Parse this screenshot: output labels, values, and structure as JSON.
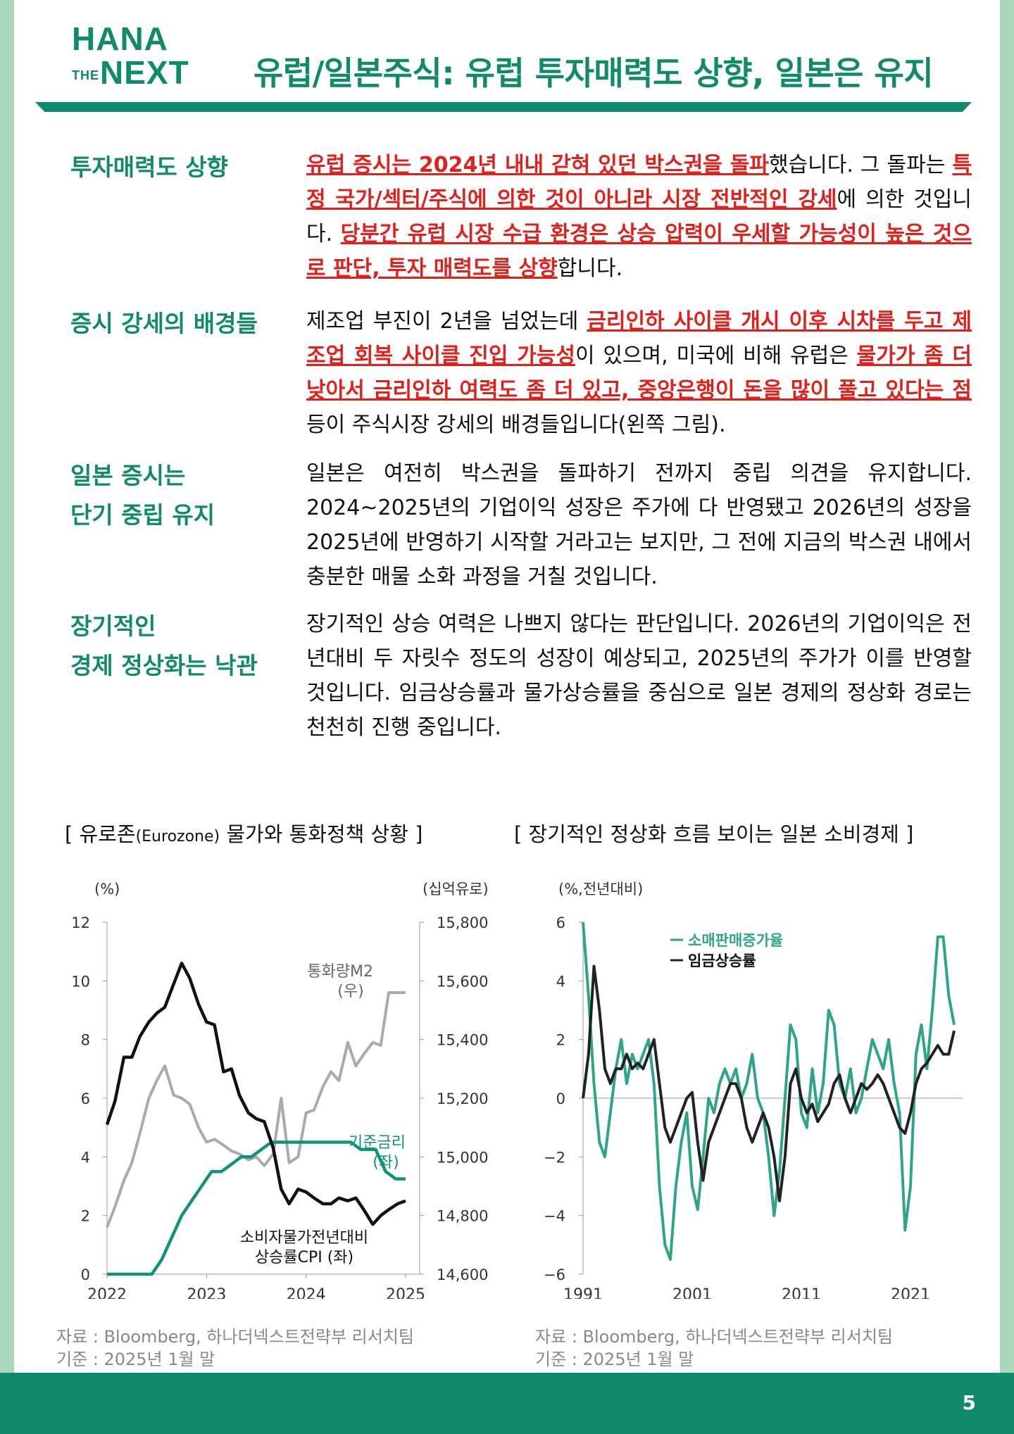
{
  "header": {
    "logo_line1": "HANA",
    "logo_the": "THE",
    "logo_next": "NEXT",
    "title": "유럽/일본주식: 유럽 투자매력도 상향, 일본은 유지"
  },
  "sections": [
    {
      "title": "투자매력도 상향",
      "body": [
        {
          "t": "유럽 증시는 2024년 내내 갇혀 있던 박스권을 돌파",
          "hl": true
        },
        {
          "t": "했습니다. 그 돌파는 ",
          "hl": false
        },
        {
          "t": "특정 국가/섹터/주식에 의한 것이 아니라 시장 전반적인 강세",
          "hl": true
        },
        {
          "t": "에 의한 것입니다. ",
          "hl": false
        },
        {
          "t": "당분간 유럽 시장 수급 환경은 상승 압력이 우세할 가능성이 높은 것으로 판단, 투자 매력도를 상향",
          "hl": true
        },
        {
          "t": "합니다.",
          "hl": false
        }
      ]
    },
    {
      "title": "증시 강세의 배경들",
      "body": [
        {
          "t": "제조업 부진이 2년을 넘었는데 ",
          "hl": false
        },
        {
          "t": "금리인하 사이클 개시 이후 시차를 두고 제조업 회복 사이클 진입 가능성",
          "hl": true
        },
        {
          "t": "이 있으며, 미국에 비해 유럽은 ",
          "hl": false
        },
        {
          "t": "물가가 좀 더 낮아서 금리인하 여력도 좀 더 있고, 중앙은행이 돈을 많이 풀고 있다는 점",
          "hl": true
        },
        {
          "t": " 등이 주식시장 강세의 배경들입니다(왼쪽 그림).",
          "hl": false
        }
      ]
    },
    {
      "title_line1": "일본 증시는",
      "title_line2": "단기 중립 유지",
      "body_text": "일본은 여전히 박스권을 돌파하기 전까지 중립 의견을 유지합니다. 2024~2025년의 기업이익 성장은 주가에 다 반영됐고 2026년의 성장을 2025년에 반영하기 시작할 거라고는 보지만, 그 전에 지금의 박스권 내에서 충분한 매물 소화 과정을 거칠 것입니다."
    },
    {
      "title_line1": "장기적인",
      "title_line2": "경제 정상화는 낙관",
      "body_text": "장기적인 상승 여력은 나쁘지 않다는 판단입니다. 2026년의 기업이익은 전년대비 두 자릿수 정도의 성장이 예상되고, 2025년의 주가가 이를 반영할 것입니다. 임금상승률과 물가상승률을 중심으로 일본 경제의 정상화 경로는 천천히 진행 중입니다."
    }
  ],
  "chart_left": {
    "title_pre": "[ 유로존",
    "title_small": "(Eurozone)",
    "title_post": " 물가와 통화정책 상황 ]",
    "left_unit": "(%)",
    "right_unit": "(십억유로)",
    "left_ticks": [
      "0",
      "2",
      "4",
      "6",
      "8",
      "10",
      "12"
    ],
    "right_ticks": [
      "14,600",
      "14,800",
      "15,000",
      "15,200",
      "15,400",
      "15,600",
      "15,800"
    ],
    "x_ticks": [
      "2022",
      "2023",
      "2024",
      "2025"
    ],
    "label_m2_1": "통화량M2",
    "label_m2_2": "(우)",
    "label_rate_1": "기준금리",
    "label_rate_2": "(좌)",
    "label_cpi_1": "소비자물가전년대비",
    "label_cpi_2": "상승률CPI (좌)",
    "source": "자료 : Bloomberg, 하나더넥스트전략부 리서치팀",
    "basis": "기준 : 2025년 1월 말"
  },
  "chart_right": {
    "title": "[ 장기적인 정상화 흐름 보이는 일본 소비경제 ]",
    "unit": "(%,전년대비)",
    "y_ticks": [
      "−6",
      "−4",
      "−2",
      "0",
      "2",
      "4",
      "6"
    ],
    "x_ticks": [
      "1991",
      "2001",
      "2011",
      "2021"
    ],
    "legend_retail": "소매판매증가율",
    "legend_wage": "임금상승률",
    "source": "자료 : Bloomberg, 하나더넥스트전략부 리서치팀",
    "basis": "기준 : 2025년 1월 말"
  },
  "colors": {
    "brand": "#0f8a6a",
    "highlight": "#e0201b",
    "m2": "#aaaaaa",
    "rate": "#11937a",
    "cpi": "#111111",
    "retail": "#2ea58a",
    "wage": "#222222"
  },
  "chart_data": [
    {
      "type": "line",
      "title": "[ 유로존(Eurozone) 물가와 통화정책 상황 ]",
      "x_range": [
        2022.0,
        2025.0
      ],
      "ylabel_left": "(%)",
      "ylim_left": [
        0,
        12
      ],
      "ylabel_right": "(십억유로)",
      "ylim_right": [
        14600,
        15800
      ],
      "series": [
        {
          "name": "소비자물가전년대비 상승률CPI (좌)",
          "axis": "left",
          "x": [
            2022.0,
            2022.08,
            2022.17,
            2022.25,
            2022.33,
            2022.42,
            2022.5,
            2022.58,
            2022.67,
            2022.75,
            2022.83,
            2022.92,
            2023.0,
            2023.08,
            2023.17,
            2023.25,
            2023.33,
            2023.42,
            2023.5,
            2023.58,
            2023.67,
            2023.75,
            2023.83,
            2023.92,
            2024.0,
            2024.08,
            2024.17,
            2024.25,
            2024.33,
            2024.42,
            2024.5,
            2024.58,
            2024.67,
            2024.75,
            2024.83,
            2024.92,
            2025.0
          ],
          "y": [
            5.1,
            5.9,
            7.4,
            7.4,
            8.1,
            8.6,
            8.9,
            9.1,
            9.9,
            10.6,
            10.1,
            9.2,
            8.6,
            8.5,
            6.9,
            7.0,
            6.1,
            5.5,
            5.3,
            5.2,
            4.3,
            2.9,
            2.4,
            2.9,
            2.8,
            2.6,
            2.4,
            2.4,
            2.6,
            2.5,
            2.6,
            2.2,
            1.7,
            2.0,
            2.2,
            2.4,
            2.5
          ]
        },
        {
          "name": "기준금리 (좌)",
          "axis": "left",
          "x": [
            2022.0,
            2022.45,
            2022.55,
            2022.65,
            2022.75,
            2022.85,
            2022.95,
            2023.05,
            2023.15,
            2023.25,
            2023.35,
            2023.45,
            2023.55,
            2023.65,
            2023.75,
            2024.45,
            2024.55,
            2024.7,
            2024.8,
            2024.9,
            2025.0
          ],
          "y": [
            0,
            0,
            0.5,
            1.25,
            2.0,
            2.5,
            3.0,
            3.5,
            3.5,
            3.75,
            4.0,
            4.0,
            4.25,
            4.5,
            4.5,
            4.5,
            4.25,
            4.25,
            3.5,
            3.25,
            3.25
          ]
        },
        {
          "name": "통화량M2 (우)",
          "axis": "right",
          "x": [
            2022.0,
            2022.08,
            2022.17,
            2022.25,
            2022.33,
            2022.42,
            2022.5,
            2022.58,
            2022.67,
            2022.75,
            2022.83,
            2022.92,
            2023.0,
            2023.08,
            2023.17,
            2023.25,
            2023.33,
            2023.42,
            2023.5,
            2023.58,
            2023.67,
            2023.75,
            2023.83,
            2023.92,
            2024.0,
            2024.08,
            2024.17,
            2024.25,
            2024.33,
            2024.42,
            2024.5,
            2024.58,
            2024.67,
            2024.75,
            2024.83,
            2024.92,
            2025.0
          ],
          "y": [
            14760,
            14830,
            14920,
            14980,
            15080,
            15200,
            15260,
            15310,
            15210,
            15200,
            15180,
            15100,
            15050,
            15060,
            15040,
            15020,
            15010,
            14990,
            15000,
            14970,
            15010,
            15200,
            14980,
            15000,
            15150,
            15160,
            15240,
            15290,
            15260,
            15390,
            15310,
            15350,
            15390,
            15380,
            15560,
            15560,
            15560
          ]
        }
      ]
    },
    {
      "type": "line",
      "title": "[ 장기적인 정상화 흐름 보이는 일본 소비경제 ]",
      "x_range": [
        1991,
        2025
      ],
      "ylabel": "(%,전년대비)",
      "ylim": [
        -6,
        6
      ],
      "series": [
        {
          "name": "소매판매증가율",
          "x": [
            1991,
            1991.5,
            1992,
            1992.5,
            1993,
            1993.5,
            1994,
            1994.5,
            1995,
            1995.5,
            1996,
            1996.5,
            1997,
            1997.5,
            1998,
            1998.5,
            1999,
            1999.5,
            2000,
            2000.5,
            2001,
            2001.5,
            2002,
            2002.5,
            2003,
            2003.5,
            2004,
            2004.5,
            2005,
            2005.5,
            2006,
            2006.5,
            2007,
            2007.5,
            2008,
            2008.5,
            2009,
            2009.5,
            2010,
            2010.5,
            2011,
            2011.5,
            2012,
            2012.5,
            2013,
            2013.5,
            2014,
            2014.5,
            2015,
            2015.5,
            2016,
            2016.5,
            2017,
            2017.5,
            2018,
            2018.5,
            2019,
            2019.5,
            2020,
            2020.5,
            2021,
            2021.5,
            2022,
            2022.5,
            2023,
            2023.5,
            2024,
            2024.5,
            2025
          ],
          "y": [
            6.0,
            3.5,
            0.5,
            -1.5,
            -2.0,
            -0.5,
            1.0,
            2.0,
            0.5,
            1.5,
            1.0,
            1.5,
            2.0,
            0.5,
            -3.0,
            -5.0,
            -5.5,
            -3.0,
            -1.5,
            -0.5,
            -3.0,
            -3.8,
            -2.0,
            0.0,
            -0.5,
            0.5,
            1.0,
            0.5,
            1.0,
            0.0,
            0.5,
            1.5,
            0.0,
            -0.5,
            -2.0,
            -4.0,
            -2.5,
            0.0,
            2.5,
            2.0,
            -0.5,
            -1.0,
            1.0,
            -0.5,
            0.5,
            3.0,
            2.5,
            0.5,
            0.0,
            1.0,
            -0.5,
            0.0,
            1.0,
            2.0,
            1.5,
            1.0,
            2.0,
            0.5,
            -0.5,
            -4.5,
            -3.0,
            1.5,
            2.5,
            1.0,
            3.0,
            5.5,
            5.5,
            3.5,
            2.5
          ]
        },
        {
          "name": "임금상승률",
          "x": [
            1991,
            1991.5,
            1992,
            1992.5,
            1993,
            1993.5,
            1994,
            1994.5,
            1995,
            1995.5,
            1996,
            1996.5,
            1997,
            1997.5,
            1998,
            1998.5,
            1999,
            1999.5,
            2000,
            2000.5,
            2001,
            2001.5,
            2002,
            2002.5,
            2003,
            2003.5,
            2004,
            2004.5,
            2005,
            2005.5,
            2006,
            2006.5,
            2007,
            2007.5,
            2008,
            2008.5,
            2009,
            2009.5,
            2010,
            2010.5,
            2011,
            2011.5,
            2012,
            2012.5,
            2013,
            2013.5,
            2014,
            2014.5,
            2015,
            2015.5,
            2016,
            2016.5,
            2017,
            2017.5,
            2018,
            2018.5,
            2019,
            2019.5,
            2020,
            2020.5,
            2021,
            2021.5,
            2022,
            2022.5,
            2023,
            2023.5,
            2024,
            2024.5,
            2025
          ],
          "y": [
            0.0,
            1.5,
            4.5,
            3.0,
            1.0,
            0.5,
            1.0,
            1.0,
            1.5,
            1.0,
            1.2,
            1.0,
            1.5,
            2.0,
            0.5,
            -1.0,
            -1.5,
            -1.0,
            -0.5,
            0.0,
            0.2,
            -1.5,
            -2.8,
            -1.5,
            -1.0,
            -0.5,
            0.0,
            0.5,
            0.5,
            0.0,
            -1.0,
            -1.5,
            -1.0,
            -0.5,
            -1.0,
            -2.0,
            -3.5,
            -2.0,
            0.5,
            1.0,
            0.0,
            -0.5,
            -0.2,
            -0.8,
            -0.5,
            -0.2,
            0.5,
            0.8,
            0.0,
            -0.5,
            0.0,
            0.5,
            0.3,
            0.5,
            0.8,
            0.5,
            0.0,
            -0.5,
            -1.0,
            -1.2,
            -0.5,
            0.5,
            1.0,
            1.2,
            1.5,
            1.8,
            1.5,
            1.5,
            2.3
          ]
        }
      ]
    }
  ]
}
